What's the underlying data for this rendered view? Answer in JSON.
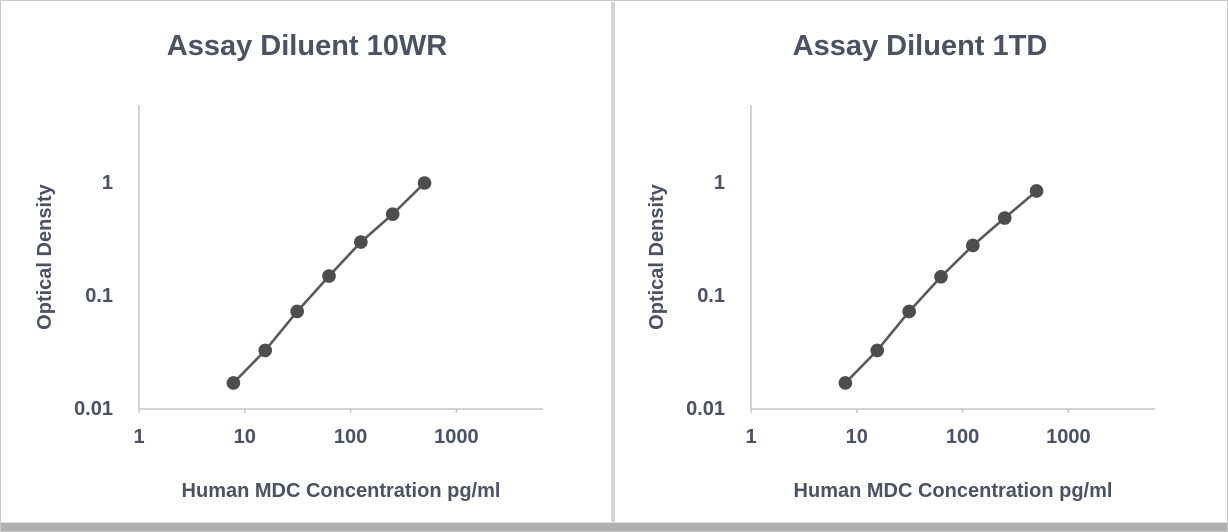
{
  "style": {
    "text_color": "#4a5263",
    "series_line_color": "#595959",
    "marker_color": "#4d4d4d",
    "axis_color": "#c6c6c6",
    "divider_color": "#d4d4d4",
    "bottom_strip_color": "#b1b1b1",
    "frame_border_color": "#c9c9c9"
  },
  "chart_data": [
    {
      "type": "line",
      "title": "Assay Diluent 10WR",
      "xlabel": "Human MDC Concentration pg/ml",
      "ylabel": "Optical Density",
      "x_scale": "log",
      "y_scale": "log",
      "xlim": [
        1,
        6460
      ],
      "ylim": [
        0.01,
        4.9
      ],
      "x_ticks": [
        1,
        10,
        100,
        1000
      ],
      "y_ticks": [
        1,
        0.1,
        0.01
      ],
      "grid": false,
      "legend": null,
      "marker": "circle",
      "x": [
        7.8,
        15.6,
        31.25,
        62.5,
        125,
        250,
        500
      ],
      "y": [
        0.017,
        0.033,
        0.073,
        0.15,
        0.3,
        0.53,
        1.0
      ]
    },
    {
      "type": "line",
      "title": "Assay Diluent 1TD",
      "xlabel": "Human MDC Concentration pg/ml",
      "ylabel": "Optical Density",
      "x_scale": "log",
      "y_scale": "log",
      "xlim": [
        1,
        6460
      ],
      "ylim": [
        0.01,
        4.9
      ],
      "x_ticks": [
        1,
        10,
        100,
        1000
      ],
      "y_ticks": [
        1,
        0.1,
        0.01
      ],
      "grid": false,
      "legend": null,
      "marker": "circle",
      "x": [
        7.8,
        15.6,
        31.25,
        62.5,
        125,
        250,
        500
      ],
      "y": [
        0.017,
        0.033,
        0.073,
        0.148,
        0.28,
        0.49,
        0.85
      ]
    }
  ]
}
